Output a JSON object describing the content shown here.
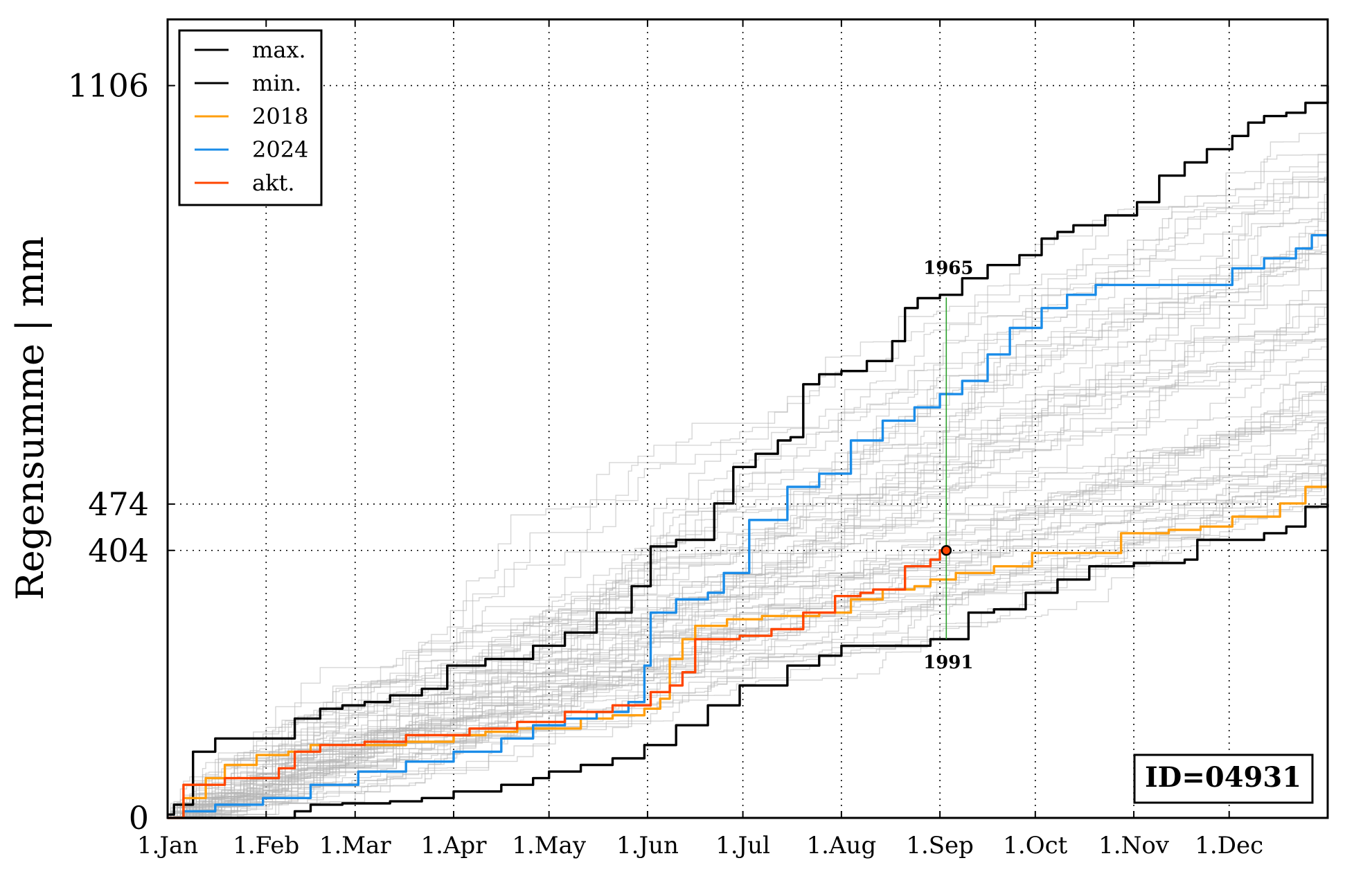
{
  "chart_data": {
    "type": "line",
    "ylabel": "Regensumme | mm",
    "x_ticks": [
      "1.Jan",
      "1.Feb",
      "1.Mar",
      "1.Apr",
      "1.May",
      "1.Jun",
      "1.Jul",
      "1.Aug",
      "1.Sep",
      "1.Oct",
      "1.Nov",
      "1.Dec"
    ],
    "x_tick_days": [
      0,
      31,
      59,
      90,
      120,
      151,
      181,
      212,
      243,
      273,
      304,
      334
    ],
    "xlim": [
      0,
      365
    ],
    "ylim": [
      0,
      1206
    ],
    "y_ticks": [
      0,
      404,
      474,
      1106
    ],
    "y_ref_lines": [
      404,
      474,
      1106
    ],
    "grid": true,
    "legend_position": "top-left",
    "id_label": "ID=04931",
    "marker": {
      "day": 245,
      "value": 404,
      "year_max_label": "1965",
      "year_min_label": "1991",
      "upper_value": 786,
      "lower_value": 270,
      "color": "#2ca02c"
    },
    "series": [
      {
        "name": "max.",
        "color": "#000000",
        "points": [
          [
            0,
            5
          ],
          [
            2,
            20
          ],
          [
            8,
            100
          ],
          [
            15,
            120
          ],
          [
            31,
            120
          ],
          [
            40,
            150
          ],
          [
            48,
            165
          ],
          [
            55,
            170
          ],
          [
            62,
            175
          ],
          [
            70,
            185
          ],
          [
            80,
            195
          ],
          [
            88,
            230
          ],
          [
            100,
            240
          ],
          [
            115,
            260
          ],
          [
            125,
            280
          ],
          [
            135,
            310
          ],
          [
            146,
            350
          ],
          [
            152,
            410
          ],
          [
            160,
            420
          ],
          [
            172,
            475
          ],
          [
            178,
            530
          ],
          [
            185,
            550
          ],
          [
            192,
            570
          ],
          [
            196,
            575
          ],
          [
            200,
            655
          ],
          [
            205,
            670
          ],
          [
            212,
            675
          ],
          [
            220,
            690
          ],
          [
            228,
            720
          ],
          [
            232,
            770
          ],
          [
            236,
            785
          ],
          [
            243,
            790
          ],
          [
            250,
            815
          ],
          [
            258,
            835
          ],
          [
            268,
            850
          ],
          [
            275,
            875
          ],
          [
            280,
            885
          ],
          [
            285,
            895
          ],
          [
            295,
            910
          ],
          [
            305,
            930
          ],
          [
            312,
            970
          ],
          [
            320,
            990
          ],
          [
            327,
            1010
          ],
          [
            335,
            1030
          ],
          [
            340,
            1050
          ],
          [
            345,
            1060
          ],
          [
            352,
            1065
          ],
          [
            358,
            1080
          ],
          [
            365,
            1106
          ]
        ]
      },
      {
        "name": "min.",
        "color": "#000000",
        "points": [
          [
            0,
            0
          ],
          [
            30,
            0
          ],
          [
            40,
            10
          ],
          [
            45,
            20
          ],
          [
            55,
            22
          ],
          [
            70,
            25
          ],
          [
            80,
            30
          ],
          [
            90,
            40
          ],
          [
            105,
            50
          ],
          [
            115,
            60
          ],
          [
            120,
            70
          ],
          [
            130,
            80
          ],
          [
            140,
            90
          ],
          [
            150,
            110
          ],
          [
            160,
            140
          ],
          [
            170,
            170
          ],
          [
            180,
            200
          ],
          [
            195,
            230
          ],
          [
            205,
            245
          ],
          [
            212,
            260
          ],
          [
            220,
            260
          ],
          [
            230,
            260
          ],
          [
            240,
            270
          ],
          [
            250,
            270
          ],
          [
            252,
            310
          ],
          [
            260,
            315
          ],
          [
            270,
            340
          ],
          [
            280,
            360
          ],
          [
            290,
            380
          ],
          [
            304,
            385
          ],
          [
            320,
            390
          ],
          [
            324,
            420
          ],
          [
            345,
            430
          ],
          [
            352,
            440
          ],
          [
            358,
            470
          ],
          [
            365,
            474
          ]
        ]
      },
      {
        "name": "2018",
        "color": "#ff9e0e",
        "points": [
          [
            0,
            0
          ],
          [
            5,
            30
          ],
          [
            12,
            60
          ],
          [
            18,
            80
          ],
          [
            28,
            95
          ],
          [
            38,
            100
          ],
          [
            45,
            110
          ],
          [
            60,
            110
          ],
          [
            75,
            115
          ],
          [
            90,
            125
          ],
          [
            100,
            130
          ],
          [
            110,
            135
          ],
          [
            120,
            135
          ],
          [
            130,
            150
          ],
          [
            140,
            155
          ],
          [
            150,
            165
          ],
          [
            155,
            180
          ],
          [
            158,
            240
          ],
          [
            162,
            270
          ],
          [
            166,
            290
          ],
          [
            176,
            300
          ],
          [
            187,
            305
          ],
          [
            205,
            310
          ],
          [
            215,
            330
          ],
          [
            225,
            345
          ],
          [
            235,
            350
          ],
          [
            240,
            360
          ],
          [
            248,
            370
          ],
          [
            260,
            380
          ],
          [
            272,
            400
          ],
          [
            290,
            400
          ],
          [
            300,
            430
          ],
          [
            315,
            435
          ],
          [
            325,
            440
          ],
          [
            335,
            455
          ],
          [
            350,
            475
          ],
          [
            358,
            500
          ],
          [
            365,
            505
          ]
        ]
      },
      {
        "name": "2024",
        "color": "#1a8ce8",
        "points": [
          [
            0,
            0
          ],
          [
            5,
            10
          ],
          [
            15,
            20
          ],
          [
            30,
            30
          ],
          [
            45,
            50
          ],
          [
            60,
            70
          ],
          [
            75,
            85
          ],
          [
            90,
            100
          ],
          [
            105,
            120
          ],
          [
            115,
            140
          ],
          [
            125,
            150
          ],
          [
            135,
            160
          ],
          [
            145,
            175
          ],
          [
            150,
            230
          ],
          [
            152,
            310
          ],
          [
            160,
            330
          ],
          [
            170,
            340
          ],
          [
            175,
            370
          ],
          [
            183,
            450
          ],
          [
            195,
            500
          ],
          [
            205,
            520
          ],
          [
            215,
            570
          ],
          [
            225,
            600
          ],
          [
            235,
            620
          ],
          [
            243,
            640
          ],
          [
            250,
            660
          ],
          [
            258,
            700
          ],
          [
            265,
            740
          ],
          [
            275,
            770
          ],
          [
            283,
            790
          ],
          [
            292,
            805
          ],
          [
            320,
            805
          ],
          [
            335,
            830
          ],
          [
            345,
            845
          ],
          [
            355,
            860
          ],
          [
            360,
            880
          ],
          [
            365,
            880
          ]
        ]
      },
      {
        "name": "akt.",
        "color": "#ff4500",
        "points": [
          [
            0,
            0
          ],
          [
            5,
            50
          ],
          [
            12,
            50
          ],
          [
            18,
            60
          ],
          [
            28,
            60
          ],
          [
            35,
            75
          ],
          [
            40,
            100
          ],
          [
            48,
            110
          ],
          [
            62,
            115
          ],
          [
            75,
            125
          ],
          [
            85,
            125
          ],
          [
            95,
            135
          ],
          [
            110,
            145
          ],
          [
            125,
            160
          ],
          [
            135,
            160
          ],
          [
            140,
            170
          ],
          [
            152,
            190
          ],
          [
            158,
            200
          ],
          [
            162,
            220
          ],
          [
            166,
            270
          ],
          [
            180,
            275
          ],
          [
            190,
            285
          ],
          [
            200,
            310
          ],
          [
            210,
            335
          ],
          [
            218,
            340
          ],
          [
            222,
            345
          ],
          [
            232,
            380
          ],
          [
            240,
            390
          ],
          [
            243,
            404
          ],
          [
            245,
            404
          ]
        ]
      }
    ]
  }
}
